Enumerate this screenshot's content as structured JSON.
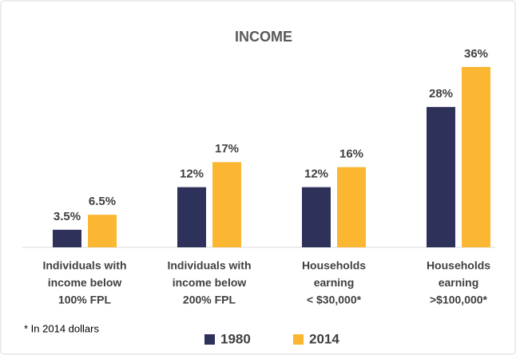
{
  "chart_data": {
    "type": "bar",
    "title": "INCOME",
    "categories": [
      [
        "Individuals with",
        "income below",
        "100% FPL"
      ],
      [
        "Individuals with",
        "income below",
        "200% FPL"
      ],
      [
        "Households",
        "earning",
        "< $30,000*"
      ],
      [
        "Households",
        "earning",
        ">$100,000*"
      ]
    ],
    "series": [
      {
        "name": "1980",
        "color": "#2e3159",
        "values": [
          3.5,
          12,
          12,
          28
        ],
        "value_labels": [
          "3.5%",
          "12%",
          "12%",
          "28%"
        ]
      },
      {
        "name": "2014",
        "color": "#fbb731",
        "values": [
          6.5,
          17,
          16,
          36
        ],
        "value_labels": [
          "6.5%",
          "17%",
          "16%",
          "36%"
        ]
      }
    ],
    "annotation": "* In 2014 dollars",
    "legend": "bottom"
  }
}
